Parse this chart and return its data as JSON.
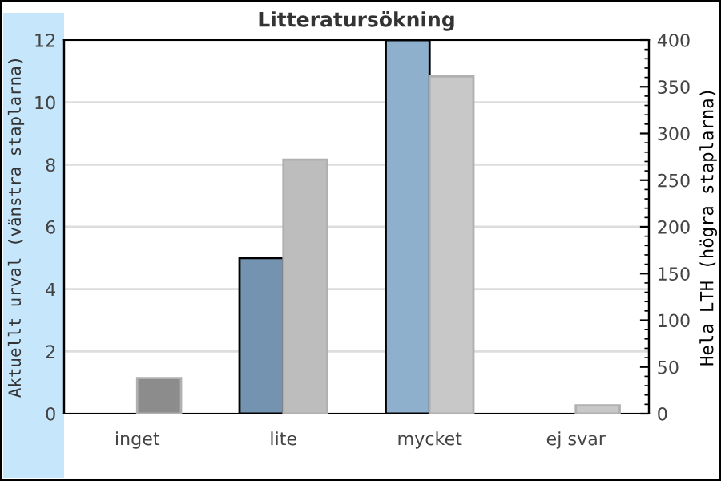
{
  "chart_data": {
    "type": "bar",
    "title": "Litteratursökning",
    "ylabel": "Aktuellt urval (vänstra staplarna)",
    "y2label": "Hela LTH (högra staplarna)",
    "categories": [
      "inget",
      "lite",
      "mycket",
      "ej svar"
    ],
    "series": [
      {
        "values": [
          null,
          5,
          12,
          null
        ],
        "colors": [
          "#7393b0",
          "#7393b0",
          "#8fb0cc",
          "#8fb0cc"
        ]
      },
      {
        "values": [
          38,
          272,
          361,
          9
        ],
        "colors": [
          "#8c8c8c",
          "#bdbdbd",
          "#c8c8c8",
          "#c8c8c8"
        ],
        "axis": "y2"
      }
    ],
    "ylim": [
      0,
      12
    ],
    "yticks": [
      0,
      2,
      4,
      6,
      8,
      10,
      12
    ],
    "y2lim": [
      0,
      400
    ],
    "y2ticks": [
      0,
      50,
      100,
      150,
      200,
      250,
      300,
      350,
      400
    ],
    "grid": "y",
    "legend": false
  }
}
